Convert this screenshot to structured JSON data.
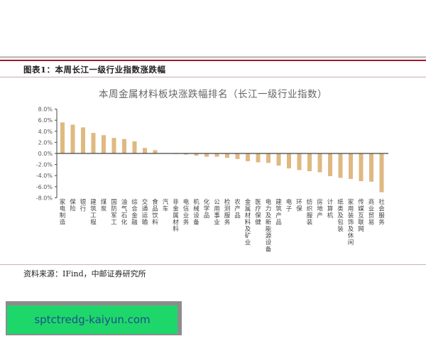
{
  "header": {
    "figure_title": "图表1：本周长江一级行业指数涨跌幅"
  },
  "footer": {
    "source": "资料来源：IFind，中邮证券研究所"
  },
  "watermark": {
    "text": "sptctredg-kaiyun.com"
  },
  "colors": {
    "bar": "#dfb982",
    "accent_line": "#a3182a",
    "watermark_bg": "#1ed76b",
    "watermark_text": "#1f4f8c"
  },
  "chart_data": {
    "type": "bar",
    "title": "本周金属材料板块涨跌幅排名（长江一级行业指数）",
    "xlabel": "",
    "ylabel": "",
    "ylim": [
      -8.0,
      8.0
    ],
    "yticks": [
      "8.0%",
      "6.0%",
      "4.0%",
      "2.0%",
      "0.0%",
      "-2.0%",
      "-4.0%",
      "-6.0%",
      "-8.0%"
    ],
    "grid": false,
    "legend": null,
    "categories": [
      "家电制造",
      "保险",
      "银行",
      "建筑工程",
      "煤炭",
      "国防军工",
      "油气石化",
      "综合金融",
      "交通运输",
      "食品饮料",
      "汽车",
      "非金属材料",
      "电信业务",
      "机械设备",
      "化学品",
      "公用事业",
      "检测服务",
      "农产品",
      "金属材料及矿业",
      "医疗保健",
      "电力及新能源设备",
      "建筑产品",
      "电子",
      "环保",
      "纺织服装",
      "房地产",
      "计算机",
      "纸类及包装",
      "家用装饰及休闲",
      "传媒互联网",
      "商业贸易",
      "社会服务"
    ],
    "values": [
      5.6,
      5.2,
      4.7,
      3.7,
      3.3,
      2.8,
      2.6,
      2.2,
      1.0,
      0.6,
      0.0,
      -0.1,
      -0.2,
      -0.4,
      -0.6,
      -0.6,
      -0.8,
      -1.0,
      -1.4,
      -1.6,
      -1.7,
      -2.2,
      -2.7,
      -3.0,
      -3.2,
      -3.4,
      -4.1,
      -4.4,
      -4.6,
      -5.0,
      -5.1,
      -7.0
    ],
    "unit": "%"
  }
}
